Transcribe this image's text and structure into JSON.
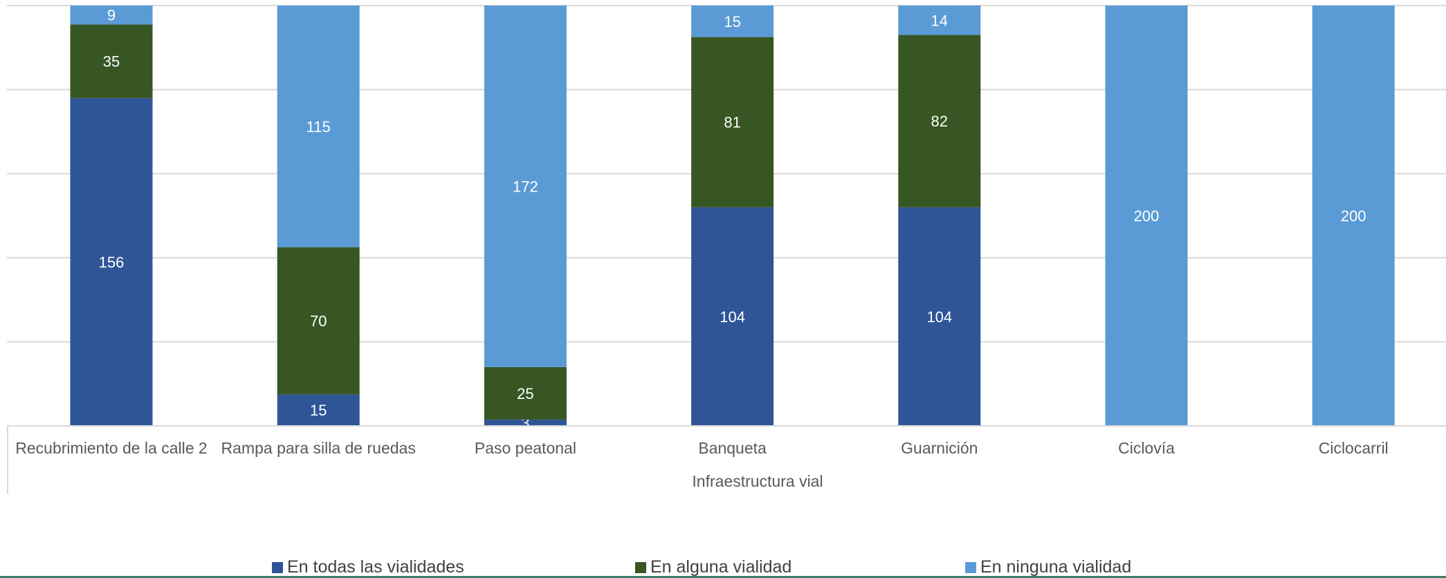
{
  "chart_data": {
    "type": "bar",
    "stacked": true,
    "xlabel": "Infraestructura vial",
    "ylabel": "",
    "ylim": [
      0,
      200
    ],
    "grid": true,
    "legend_position": "bottom",
    "categories": [
      "Recubrimiento de la calle 2",
      "Rampa para silla de ruedas",
      "Paso peatonal",
      "Banqueta",
      "Guarnición",
      "Ciclovía",
      "Ciclocarril"
    ],
    "series": [
      {
        "name": "En todas las vialidades",
        "color": "#2f5597",
        "values": [
          156,
          15,
          3,
          104,
          104,
          0,
          0
        ]
      },
      {
        "name": "En alguna vialidad",
        "color": "#375623",
        "values": [
          35,
          70,
          25,
          81,
          82,
          0,
          0
        ]
      },
      {
        "name": "En ninguna vialidad",
        "color": "#5b9bd5",
        "values": [
          9,
          115,
          172,
          15,
          14,
          200,
          200
        ]
      }
    ]
  }
}
